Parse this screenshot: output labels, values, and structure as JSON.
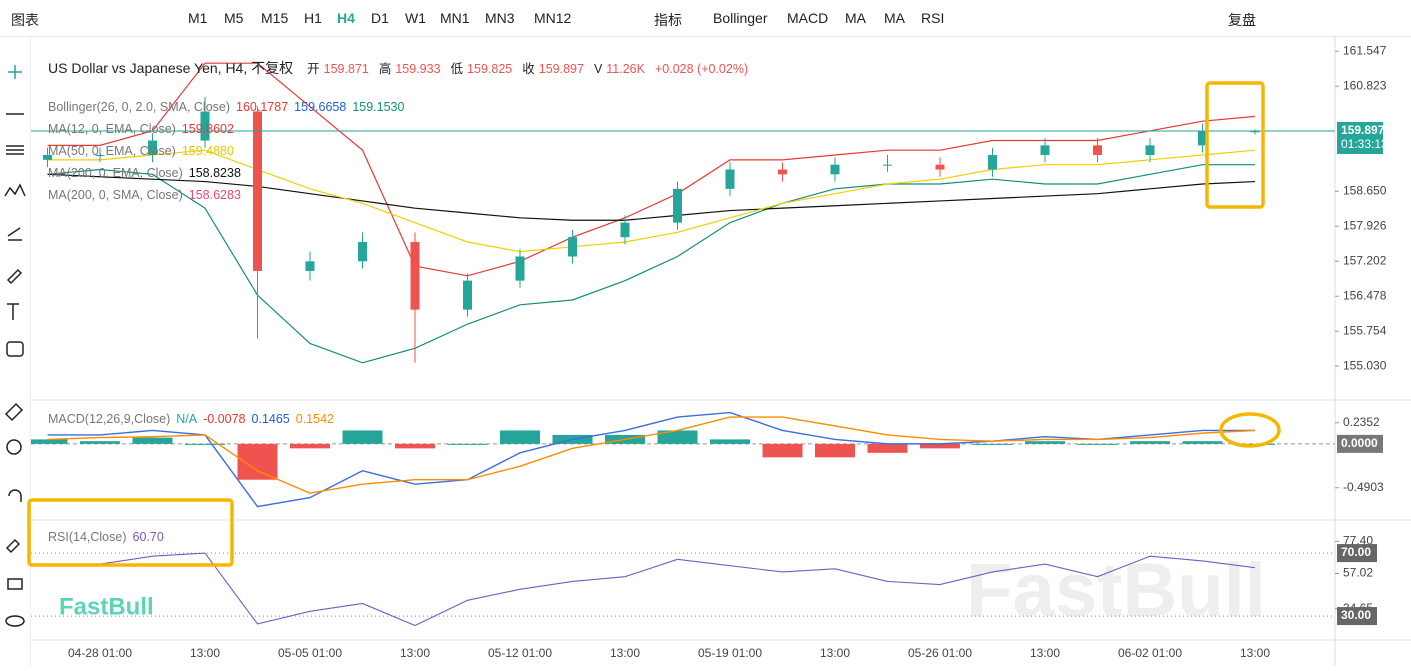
{
  "toolbar": {
    "chart_menu": "图表",
    "timeframes": [
      "M1",
      "M5",
      "M15",
      "H1",
      "H4",
      "D1",
      "W1",
      "MN1",
      "MN3",
      "MN12"
    ],
    "active": "H4",
    "indicators_button": "指标",
    "indicators": [
      "Bollinger",
      "MACD",
      "MA",
      "MA",
      "RSI"
    ],
    "replay": "复盘"
  },
  "chart_data": {
    "type": "candlestick",
    "title": "US Dollar vs Japanese Yen, H4, 不复权",
    "ohlc_labels": [
      {
        "k": "开",
        "v": "159.871"
      },
      {
        "k": "高",
        "v": "159.933"
      },
      {
        "k": "低",
        "v": "159.825"
      },
      {
        "k": "收",
        "v": "159.897"
      },
      {
        "k": "V",
        "v": "11.26K"
      }
    ],
    "change": "+0.028 (+0.02%)",
    "indicator_legend": [
      {
        "name": "Bollinger(26, 0, 2.0, SMA, Close)",
        "values": [
          {
            "text": "160.1787",
            "color": "#e53935"
          },
          {
            "text": "159.6658",
            "color": "#1e5fd8"
          },
          {
            "text": "159.1530",
            "color": "#0e8f7e"
          }
        ]
      },
      {
        "name": "MA(12, 0, EMA, Close)",
        "values": [
          {
            "text": "159.8602",
            "color": "#e53935"
          }
        ]
      },
      {
        "name": "MA(50, 0, EMA, Close)",
        "values": [
          {
            "text": "159.4880",
            "color": "#e6c800"
          }
        ]
      },
      {
        "name": "MA(200, 0, EMA, Close)",
        "values": [
          {
            "text": "158.8238",
            "color": "#111111"
          }
        ]
      },
      {
        "name": "MA(200, 0, SMA, Close)",
        "values": [
          {
            "text": "158.6283",
            "color": "#e84a7a"
          }
        ]
      }
    ],
    "categories": [
      null,
      "04-28 01:00",
      null,
      "13:00",
      null,
      "05-05 01:00",
      null,
      "13:00",
      null,
      "05-12 01:00",
      null,
      "13:00",
      null,
      "05-19 01:00",
      null,
      "13:00",
      null,
      "05-26 01:00",
      null,
      "13:00",
      null,
      "06-02 01:00",
      null,
      "13:00"
    ],
    "open": [
      159.3,
      159.4,
      159.4,
      159.7,
      160.3,
      157.0,
      157.2,
      157.6,
      156.2,
      156.8,
      157.3,
      157.7,
      158.0,
      158.7,
      159.1,
      159.0,
      159.2,
      159.2,
      159.1,
      159.4,
      159.6,
      159.4,
      159.6,
      159.871
    ],
    "high": [
      159.55,
      159.55,
      159.85,
      160.6,
      160.4,
      157.4,
      157.8,
      157.8,
      156.95,
      157.45,
      157.85,
      158.15,
      158.85,
      159.25,
      159.25,
      159.35,
      159.4,
      159.35,
      159.55,
      159.75,
      159.75,
      159.75,
      160.05,
      159.933
    ],
    "low": [
      159.15,
      159.25,
      159.25,
      159.55,
      155.6,
      156.8,
      157.05,
      155.1,
      156.05,
      156.65,
      157.15,
      157.55,
      157.85,
      158.55,
      158.85,
      158.85,
      159.05,
      158.95,
      158.95,
      159.25,
      159.25,
      159.25,
      159.45,
      159.825
    ],
    "close": [
      159.4,
      159.4,
      159.7,
      160.3,
      157.0,
      157.2,
      157.6,
      156.2,
      156.8,
      157.3,
      157.7,
      158.0,
      158.7,
      159.1,
      159.0,
      159.2,
      159.2,
      159.1,
      159.4,
      159.6,
      159.4,
      159.6,
      159.9,
      159.897
    ],
    "up_color": "#26a69a",
    "down_color": "#ef5350",
    "overlays": [
      {
        "color": "#e53935",
        "values": [
          159.6,
          159.6,
          159.9,
          161.3,
          161.3,
          160.4,
          159.5,
          157.1,
          156.9,
          157.2,
          157.7,
          158.1,
          158.6,
          159.3,
          159.3,
          159.4,
          159.5,
          159.5,
          159.7,
          159.7,
          159.7,
          159.9,
          160.1,
          160.2
        ]
      },
      {
        "color": "#0e8f7e",
        "values": [
          159.0,
          159.1,
          159.0,
          158.3,
          156.5,
          155.5,
          155.1,
          155.4,
          155.9,
          156.3,
          156.4,
          156.8,
          157.3,
          158.0,
          158.4,
          158.7,
          158.8,
          158.8,
          158.9,
          158.8,
          158.8,
          159.0,
          159.2,
          159.2
        ]
      },
      {
        "color": "#111111",
        "values": [
          159.0,
          158.95,
          158.9,
          158.85,
          158.75,
          158.6,
          158.45,
          158.3,
          158.2,
          158.1,
          158.05,
          158.05,
          158.15,
          158.25,
          158.3,
          158.35,
          158.4,
          158.45,
          158.5,
          158.55,
          158.6,
          158.7,
          158.8,
          158.85
        ]
      },
      {
        "color": "#f0d000",
        "values": [
          159.3,
          159.3,
          159.4,
          159.5,
          159.1,
          158.7,
          158.4,
          158.0,
          157.6,
          157.4,
          157.5,
          157.6,
          157.8,
          158.1,
          158.4,
          158.6,
          158.8,
          158.9,
          159.1,
          159.2,
          159.2,
          159.3,
          159.4,
          159.5
        ]
      }
    ],
    "ylim": [
      154.33,
      161.78
    ],
    "yticks": [
      161.547,
      160.823,
      158.65,
      157.926,
      157.202,
      156.478,
      155.754,
      155.03
    ],
    "ytick_labels": [
      "161.547",
      "160.823",
      "158.650",
      "157.926",
      "157.202",
      "156.478",
      "155.754",
      "155.030"
    ],
    "last_price": 159.897,
    "countdown": "01:33:13",
    "macd": {
      "label": "MACD(12,26,9,Close)",
      "values_text": [
        {
          "text": "N/A",
          "color": "#26a69a"
        },
        {
          "text": "-0.0078",
          "color": "#e53935"
        },
        {
          "text": "0.1465",
          "color": "#1e5fd8"
        },
        {
          "text": "0.1542",
          "color": "#ff8c00"
        }
      ],
      "ylim": [
        -0.85,
        0.49
      ],
      "yticks": [
        0.2352,
        -0.4903
      ],
      "zero": {
        "value": 0,
        "label": "0.0000"
      },
      "histogram": [
        0.05,
        0.03,
        0.07,
        0.0,
        -0.4,
        -0.05,
        0.15,
        -0.05,
        0.0,
        0.15,
        0.1,
        0.1,
        0.15,
        0.05,
        -0.15,
        -0.15,
        -0.1,
        -0.05,
        0.0,
        0.03,
        0.0,
        0.03,
        0.03,
        0.0
      ],
      "macd": [
        0.1,
        0.1,
        0.15,
        0.1,
        -0.7,
        -0.6,
        -0.3,
        -0.45,
        -0.4,
        -0.1,
        0.05,
        0.15,
        0.3,
        0.35,
        0.15,
        0.05,
        0.0,
        0.0,
        0.03,
        0.08,
        0.05,
        0.1,
        0.15,
        0.15
      ],
      "signal": [
        0.05,
        0.07,
        0.08,
        0.1,
        -0.3,
        -0.55,
        -0.45,
        -0.4,
        -0.4,
        -0.25,
        -0.05,
        0.05,
        0.15,
        0.3,
        0.3,
        0.2,
        0.1,
        0.05,
        0.03,
        0.05,
        0.05,
        0.07,
        0.12,
        0.15
      ],
      "macd_color": "#3b6fe0",
      "signal_color": "#ff8c00"
    },
    "rsi": {
      "label": "RSI(14,Close)",
      "value_text": "60.70",
      "color": "#7e57c2",
      "ylim": [
        14.8,
        91
      ],
      "yticks": [
        {
          "value": 77.4,
          "label": "77.40"
        },
        57.02,
        34.65
      ],
      "levels": [
        {
          "value": 70,
          "label": "70.00"
        },
        {
          "value": 30,
          "label": "30.00"
        }
      ],
      "values": [
        62,
        63,
        68,
        70,
        25,
        33,
        38,
        24,
        40,
        47,
        52,
        55,
        66,
        62,
        58,
        60,
        52,
        50,
        58,
        63,
        55,
        68,
        65,
        60.7
      ]
    },
    "logo": "FastBull",
    "watermark": "FastBull"
  }
}
